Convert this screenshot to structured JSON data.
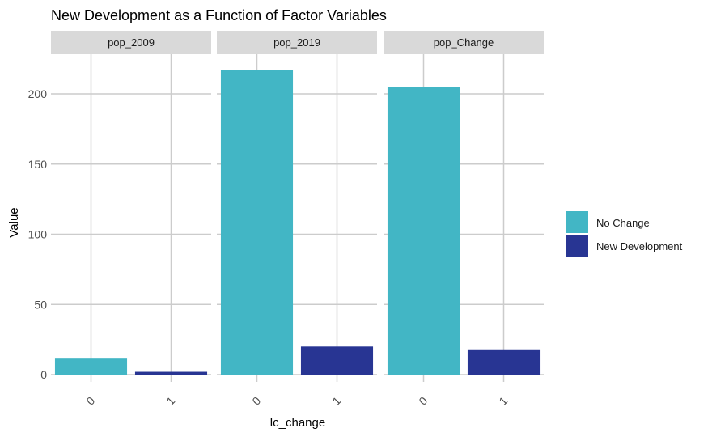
{
  "chart_data": {
    "type": "bar",
    "title": "New Development as a Function of Factor Variables",
    "xlabel": "lc_change",
    "ylabel": "Value",
    "ylim": [
      0,
      225
    ],
    "yticks": [
      0,
      50,
      100,
      150,
      200
    ],
    "categories": [
      "0",
      "1"
    ],
    "grid": true,
    "legend_position": "right",
    "legend": [
      {
        "name": "No Change",
        "color": "#42B6C5"
      },
      {
        "name": "New Development",
        "color": "#283593"
      }
    ],
    "panels": [
      {
        "name": "pop_2009",
        "values": [
          12,
          2
        ]
      },
      {
        "name": "pop_2019",
        "values": [
          217,
          20
        ]
      },
      {
        "name": "pop_Change",
        "values": [
          205,
          18
        ]
      }
    ]
  }
}
